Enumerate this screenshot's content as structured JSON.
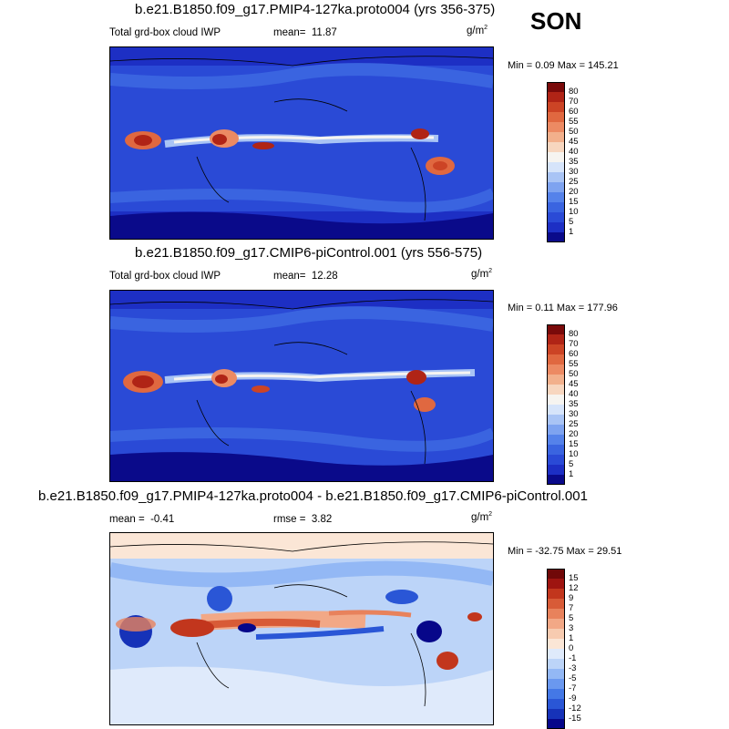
{
  "season": "SON",
  "units": "g/m",
  "units_sup": "2",
  "panels": [
    {
      "title": "b.e21.B1850.f09_g17.PMIP4-127ka.proto004 (yrs 356-375)",
      "variable": "Total grd-box cloud IWP",
      "mean_label": "mean=",
      "mean": "11.87",
      "minmax": "Min =   0.09 Max = 145.21",
      "colorbar": [
        "80",
        "70",
        "60",
        "55",
        "50",
        "45",
        "40",
        "35",
        "30",
        "25",
        "20",
        "15",
        "10",
        "5",
        "1"
      ]
    },
    {
      "title": "b.e21.B1850.f09_g17.CMIP6-piControl.001 (yrs 556-575)",
      "variable": "Total grd-box cloud IWP",
      "mean_label": "mean=",
      "mean": "12.28",
      "minmax": "Min =   0.11 Max = 177.96",
      "colorbar": [
        "80",
        "70",
        "60",
        "55",
        "50",
        "45",
        "40",
        "35",
        "30",
        "25",
        "20",
        "15",
        "10",
        "5",
        "1"
      ]
    },
    {
      "title": "b.e21.B1850.f09_g17.PMIP4-127ka.proto004 - b.e21.B1850.f09_g17.CMIP6-piControl.001",
      "mean_label": "mean =",
      "mean": "-0.41",
      "rmse_label": "rmse =",
      "rmse": "3.82",
      "minmax": "Min = -32.75 Max =  29.51",
      "colorbar": [
        "15",
        "12",
        "9",
        "7",
        "5",
        "3",
        "1",
        "0",
        "-1",
        "-3",
        "-5",
        "-7",
        "-9",
        "-12",
        "-15"
      ]
    }
  ],
  "colors": {
    "abs_scale": [
      "#0a0a8a",
      "#1d2fc4",
      "#2a4ad6",
      "#3a64e0",
      "#5582ea",
      "#7ea3f0",
      "#a9c4f5",
      "#d6e4fa",
      "#f6f4f0",
      "#f7d6bf",
      "#f2b08c",
      "#ec8a63",
      "#e06840",
      "#cc4425",
      "#b02416",
      "#7a0a0a"
    ],
    "diff_scale": [
      "#07078a",
      "#1632b8",
      "#2a56d6",
      "#4478e6",
      "#6a98ef",
      "#93b8f5",
      "#bcd4f8",
      "#dfeafb",
      "#fbe6d6",
      "#f7cbb0",
      "#f2a886",
      "#e8825c",
      "#d85b37",
      "#c2361d",
      "#9e1410",
      "#700808"
    ]
  }
}
